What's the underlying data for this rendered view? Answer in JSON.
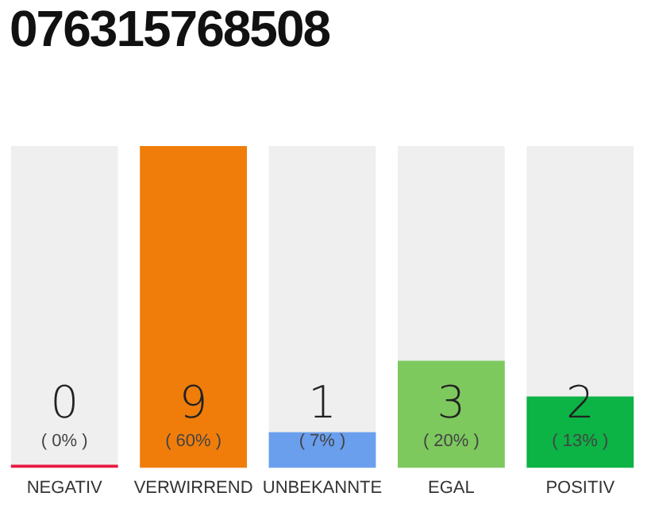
{
  "chart_data": {
    "type": "bar",
    "title": "076315768508",
    "categories": [
      "NEGATIV",
      "VERWIRREND",
      "UNBEKANNTE",
      "EGAL",
      "POSITIV"
    ],
    "values": [
      0,
      9,
      1,
      3,
      2
    ],
    "colors": [
      "#e8173f",
      "#f07d0a",
      "#6a9fee",
      "#7dc95e",
      "#0cb345"
    ],
    "tick_labels": "x",
    "grid": false,
    "legend": false,
    "value_labels": [
      "0\n( 0% )",
      "9\n( 60% )",
      "1\n( 7% )",
      "3\n( 20% )",
      "2\n( 13% )"
    ]
  }
}
